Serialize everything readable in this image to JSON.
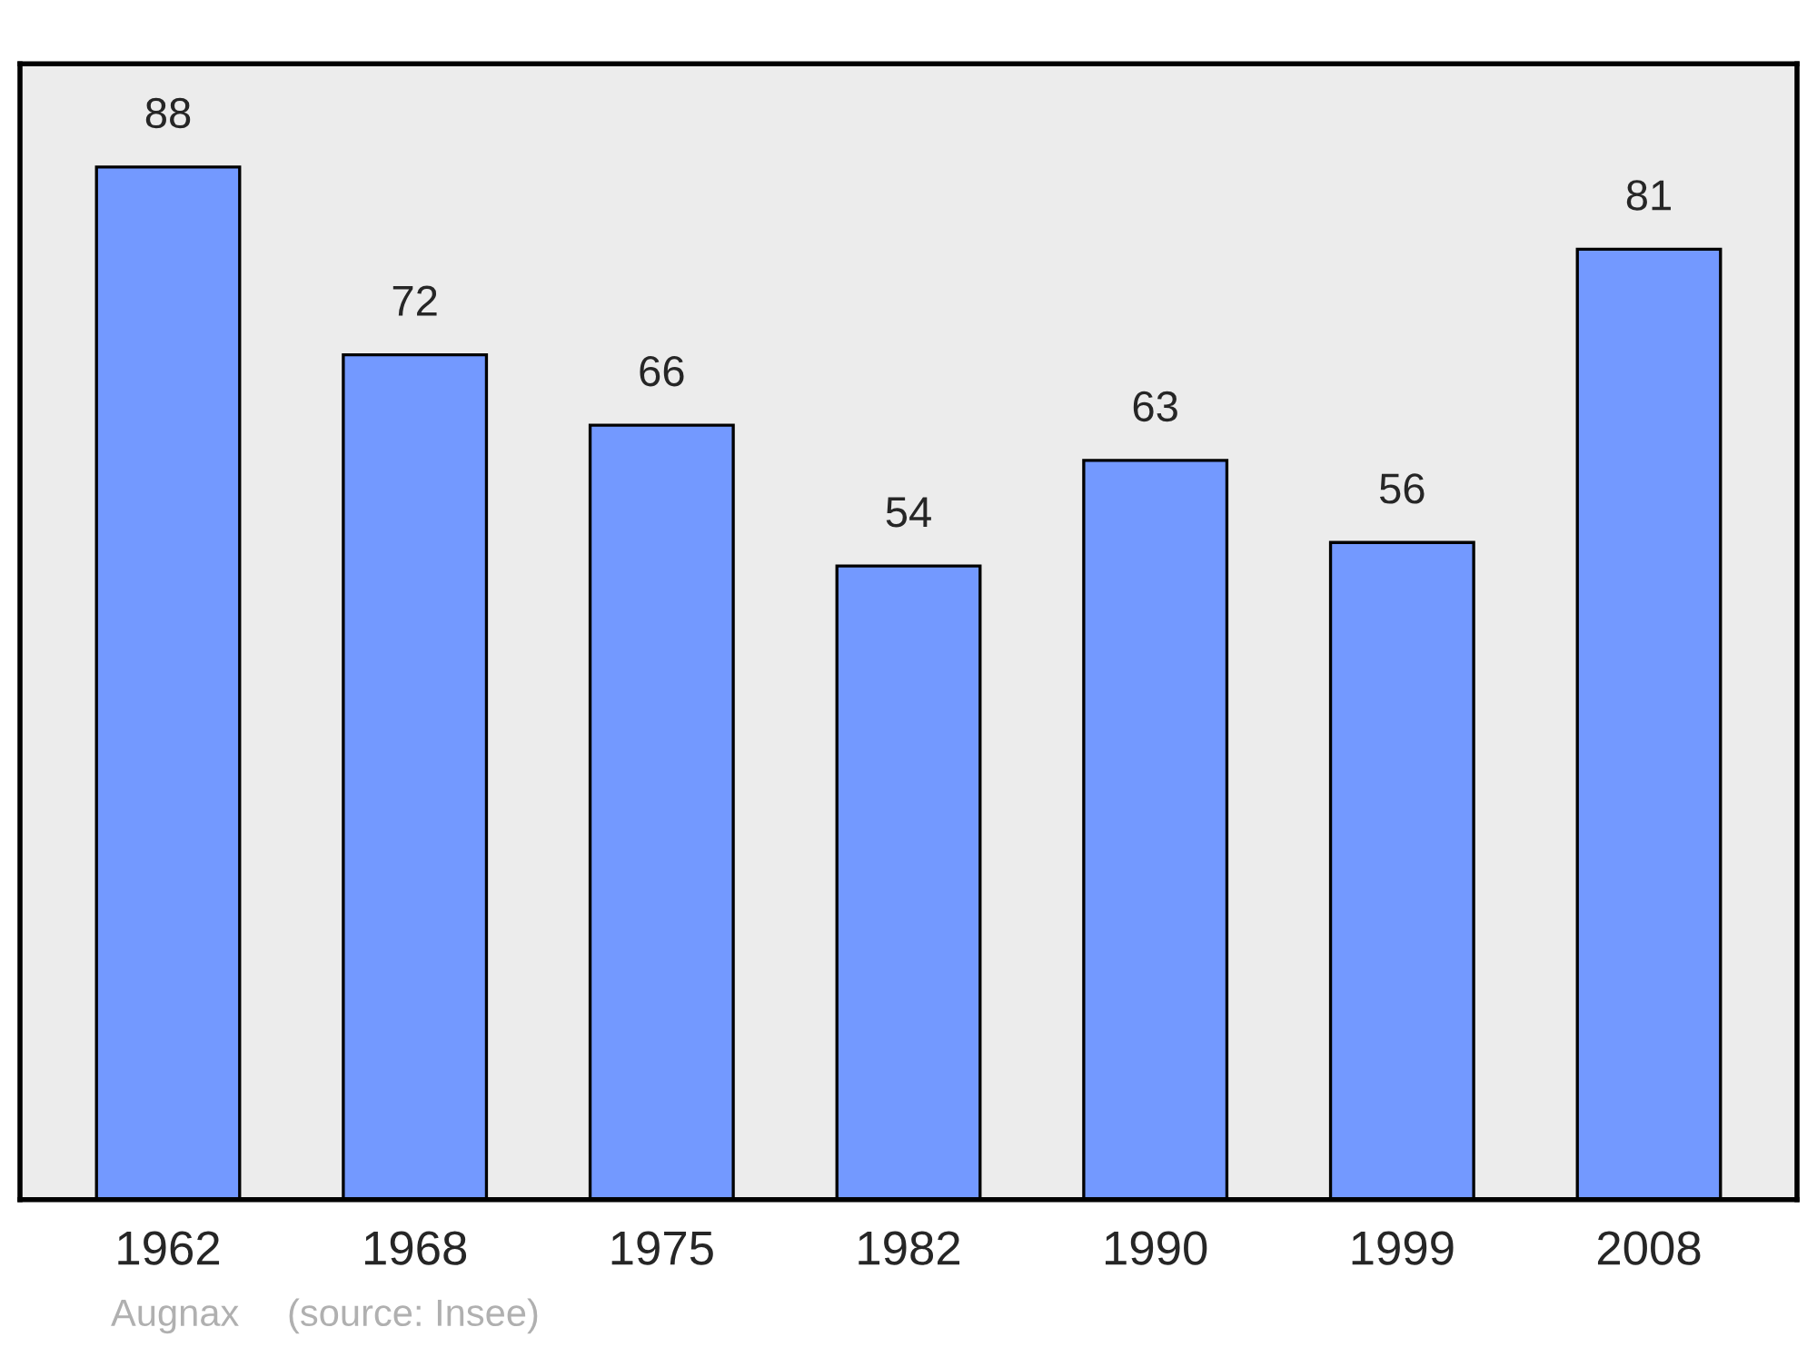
{
  "chart_data": {
    "type": "bar",
    "categories": [
      "1962",
      "1968",
      "1975",
      "1982",
      "1990",
      "1999",
      "2008"
    ],
    "values": [
      88,
      72,
      66,
      54,
      63,
      56,
      81
    ],
    "color": "#7399ff",
    "data_labels": true,
    "grid": false,
    "legend": false,
    "tick_labels": "x",
    "annotations": [
      "Augnax",
      "(source: Insee)"
    ]
  }
}
